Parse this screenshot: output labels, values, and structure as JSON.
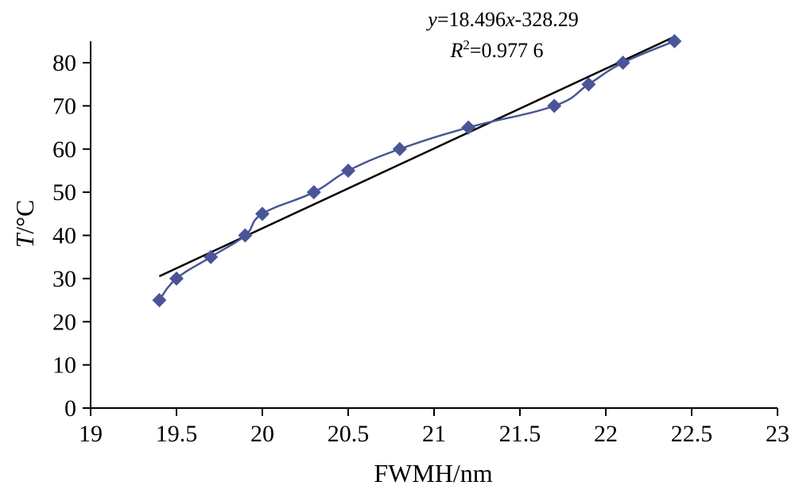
{
  "chart_data": {
    "type": "scatter",
    "xlabel": "FWMH/nm",
    "ylabel_italic": "T",
    "ylabel_rest": "/°C",
    "xlim": [
      19,
      23
    ],
    "ylim": [
      0,
      85
    ],
    "x_ticks": [
      19,
      19.5,
      20,
      20.5,
      21,
      21.5,
      22,
      22.5,
      23
    ],
    "x_tick_labels": [
      "19",
      "19.5",
      "20",
      "20.5",
      "21",
      "21.5",
      "22",
      "22.5",
      "23"
    ],
    "y_ticks": [
      0,
      10,
      20,
      30,
      40,
      50,
      60,
      70,
      80
    ],
    "y_tick_labels": [
      "0",
      "10",
      "20",
      "30",
      "40",
      "50",
      "60",
      "70",
      "80"
    ],
    "grid": false,
    "series": [
      {
        "marker": "diamond",
        "color": "#4a5597",
        "smooth_line": true,
        "x": [
          19.4,
          19.5,
          19.7,
          19.9,
          20.0,
          20.3,
          20.5,
          20.8,
          21.2,
          21.7,
          21.9,
          22.1,
          22.4
        ],
        "y": [
          25,
          30,
          35,
          40,
          45,
          50,
          55,
          60,
          65,
          70,
          75,
          80,
          85
        ]
      }
    ],
    "fit": {
      "color": "#000000",
      "slope": 18.496,
      "intercept": -328.29,
      "x_range": [
        19.4,
        22.4
      ],
      "eq_y": "y",
      "eq_eq1": "=18.496",
      "eq_x": "x",
      "eq_rest": "-328.29",
      "r2_r": "R",
      "r2_sup": "2",
      "r2_rest": "=0.977 6"
    }
  }
}
